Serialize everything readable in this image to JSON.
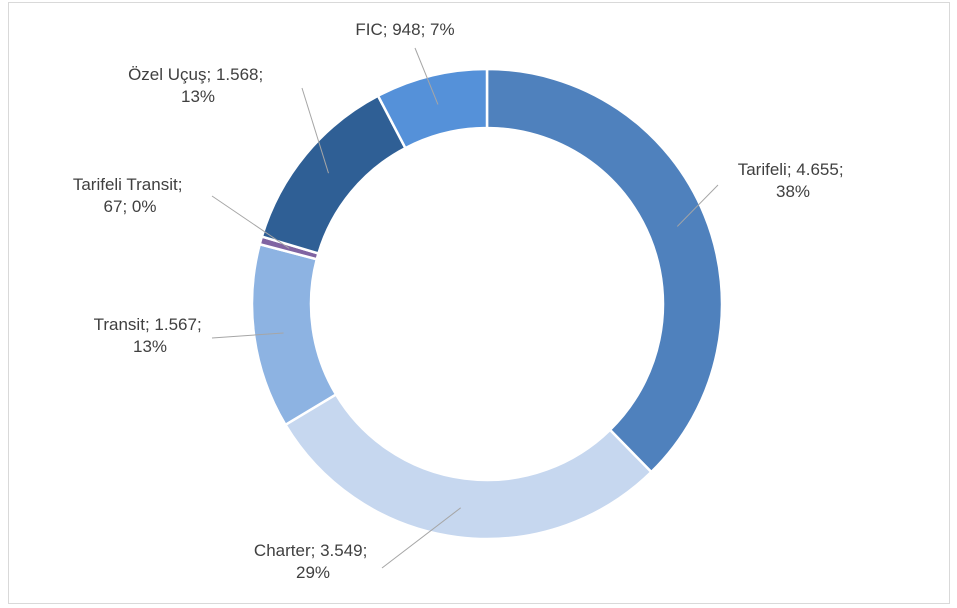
{
  "chart_data": {
    "type": "donut",
    "categories": [
      "Tarifeli",
      "Charter",
      "Transit",
      "Tarifeli Transit",
      "Özel Uçuş",
      "FIC"
    ],
    "values": [
      4655,
      3549,
      1567,
      67,
      1568,
      948
    ],
    "value_labels": [
      "4.655",
      "3.549",
      "1.567",
      "67",
      "1.568",
      "948"
    ],
    "percents": [
      38,
      29,
      13,
      0,
      13,
      7
    ],
    "percent_labels": [
      "38%",
      "29%",
      "13%",
      "0%",
      "13%",
      "7%"
    ],
    "separator": "; ",
    "colors": [
      "#4f81bd",
      "#c6d7ef",
      "#8db3e2",
      "#8064a2",
      "#2f5f95",
      "#5591d9"
    ]
  }
}
